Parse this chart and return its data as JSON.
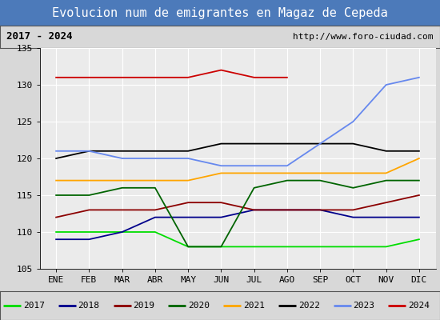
{
  "title": "Evolucion num de emigrantes en Magaz de Cepeda",
  "subtitle_left": "2017 - 2024",
  "subtitle_right": "http://www.foro-ciudad.com",
  "months": [
    "ENE",
    "FEB",
    "MAR",
    "ABR",
    "MAY",
    "JUN",
    "JUL",
    "AGO",
    "SEP",
    "OCT",
    "NOV",
    "DIC"
  ],
  "series": {
    "2017": {
      "color": "#00dd00",
      "data": [
        110,
        110,
        110,
        110,
        108,
        108,
        108,
        108,
        108,
        108,
        108,
        109
      ]
    },
    "2018": {
      "color": "#00008b",
      "data": [
        109,
        109,
        110,
        112,
        112,
        112,
        113,
        113,
        113,
        112,
        112,
        112
      ]
    },
    "2019": {
      "color": "#8b0000",
      "data": [
        112,
        113,
        113,
        113,
        114,
        114,
        113,
        113,
        113,
        113,
        114,
        115
      ]
    },
    "2020": {
      "color": "#006400",
      "data": [
        115,
        115,
        116,
        116,
        108,
        108,
        116,
        117,
        117,
        116,
        117,
        117
      ]
    },
    "2021": {
      "color": "#ffa500",
      "data": [
        117,
        117,
        117,
        117,
        117,
        118,
        118,
        118,
        118,
        118,
        118,
        120
      ]
    },
    "2022": {
      "color": "#000000",
      "data": [
        120,
        121,
        121,
        121,
        121,
        122,
        122,
        122,
        122,
        122,
        121,
        121
      ]
    },
    "2023": {
      "color": "#6688ee",
      "data": [
        121,
        121,
        120,
        120,
        120,
        119,
        119,
        119,
        122,
        125,
        130,
        131
      ]
    },
    "2024": {
      "color": "#cc0000",
      "data": [
        131,
        131,
        131,
        131,
        131,
        132,
        131,
        131,
        null,
        null,
        null,
        null
      ]
    }
  },
  "ylim": [
    105,
    135
  ],
  "yticks": [
    105,
    110,
    115,
    120,
    125,
    130,
    135
  ],
  "background_color": "#d8d8d8",
  "title_bg_color": "#4c7aba",
  "title_color": "#ffffff",
  "plot_bg_color": "#ebebeb",
  "grid_color": "#ffffff",
  "title_fontsize": 11,
  "tick_fontsize": 8,
  "legend_fontsize": 8
}
